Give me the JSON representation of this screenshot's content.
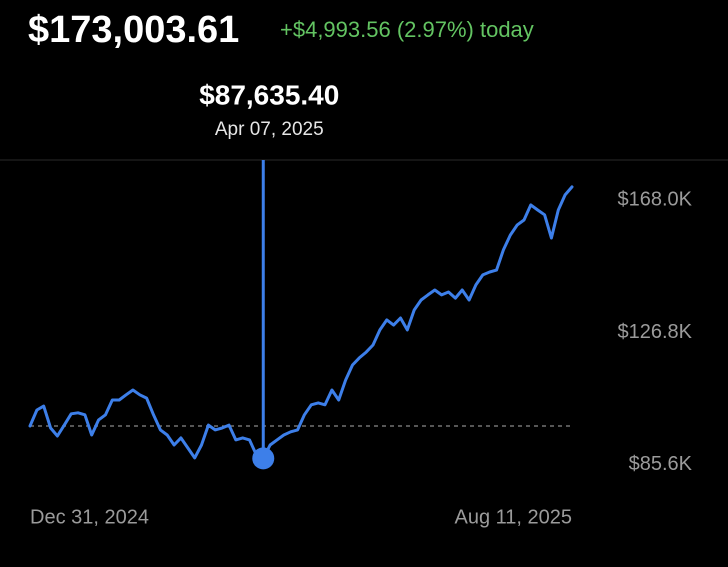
{
  "chart_data": {
    "type": "line",
    "title": "$173,003.61",
    "subtitle": "+$4,993.56 (2.97%) today",
    "color": "#3d7fe9",
    "subtitle_color": "#63c462",
    "categories": [
      "Dec 31, 2024",
      null,
      null,
      null,
      null,
      null,
      null,
      null,
      null,
      null,
      null,
      null,
      null,
      null,
      null,
      null,
      null,
      null,
      null,
      null,
      null,
      null,
      null,
      null,
      null,
      null,
      null,
      null,
      null,
      null,
      null,
      null,
      null,
      null,
      "Apr 07, 2025",
      null,
      null,
      null,
      null,
      null,
      null,
      null,
      null,
      null,
      null,
      null,
      null,
      null,
      null,
      null,
      null,
      null,
      null,
      null,
      null,
      null,
      null,
      null,
      null,
      null,
      null,
      null,
      null,
      null,
      null,
      null,
      null,
      null,
      null,
      null,
      null,
      null,
      null,
      null,
      null,
      null,
      null,
      null,
      null,
      "Aug 11, 2025"
    ],
    "values": [
      97700,
      102700,
      103900,
      97100,
      94600,
      98000,
      101500,
      101800,
      101200,
      94900,
      99600,
      101200,
      105800,
      105800,
      107400,
      108900,
      107400,
      106400,
      101200,
      96500,
      94900,
      91800,
      94000,
      90900,
      87800,
      91800,
      98000,
      96500,
      97100,
      98000,
      93400,
      94000,
      93400,
      88700,
      87635.4,
      91800,
      93400,
      94900,
      95900,
      96500,
      101200,
      104300,
      104900,
      104300,
      108900,
      105800,
      112000,
      116700,
      118900,
      120700,
      122900,
      127600,
      130700,
      129100,
      131300,
      127600,
      133800,
      136900,
      138500,
      140000,
      138500,
      139400,
      137500,
      140000,
      136900,
      141600,
      144700,
      145600,
      146200,
      152500,
      157100,
      160200,
      161800,
      166500,
      164900,
      163400,
      156200,
      164900,
      169600,
      172100
    ],
    "value_labels": [
      null,
      null,
      null,
      null,
      null,
      null,
      null,
      null,
      null,
      null,
      null,
      null,
      null,
      null,
      null,
      null,
      null,
      null,
      null,
      null,
      null,
      null,
      null,
      null,
      null,
      null,
      null,
      null,
      null,
      null,
      null,
      null,
      null,
      null,
      "$87,635.40",
      null,
      null,
      null,
      null,
      null,
      null,
      null,
      null,
      null,
      null,
      null,
      null,
      null,
      null,
      null,
      null,
      null,
      null,
      null,
      null,
      null,
      null,
      null,
      null,
      null,
      null,
      null,
      null,
      null,
      null,
      null,
      null,
      null,
      null,
      null,
      null,
      null,
      null,
      null,
      null,
      null,
      null,
      null,
      null,
      null
    ],
    "reference_line": 97700,
    "ylim": [
      77800,
      178900
    ],
    "yticks": [
      {
        "value": 168000,
        "label": "$168.0K"
      },
      {
        "value": 126800,
        "label": "$126.8K"
      },
      {
        "value": 85600,
        "label": "$85.6K"
      }
    ],
    "grid": false
  }
}
